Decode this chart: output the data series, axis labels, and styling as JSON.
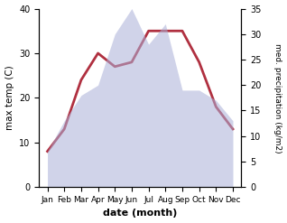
{
  "months": [
    "Jan",
    "Feb",
    "Mar",
    "Apr",
    "May",
    "Jun",
    "Jul",
    "Aug",
    "Sep",
    "Oct",
    "Nov",
    "Dec"
  ],
  "temperature": [
    8,
    13,
    24,
    30,
    27,
    28,
    35,
    35,
    35,
    28,
    18,
    13
  ],
  "precipitation": [
    7,
    13,
    18,
    20,
    30,
    35,
    28,
    32,
    19,
    19,
    17,
    13
  ],
  "temp_ylim": [
    0,
    40
  ],
  "precip_ylim": [
    0,
    35
  ],
  "temp_color": "#b03040",
  "precip_fill_color": "#aab0d8",
  "xlabel": "date (month)",
  "ylabel_left": "max temp (C)",
  "ylabel_right": "med. precipitation (kg/m2)",
  "fill_alpha": 0.55,
  "line_width": 2.0
}
